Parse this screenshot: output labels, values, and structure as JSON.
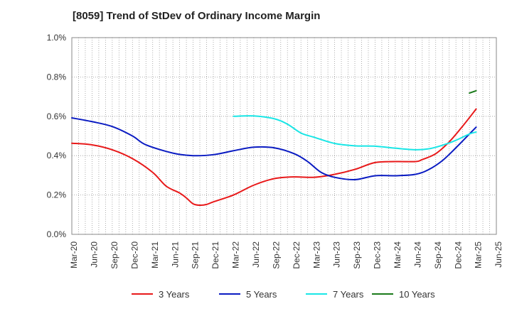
{
  "chart_data": {
    "type": "line",
    "title": "[8059]  Trend of StDev of Ordinary Income Margin",
    "xlabel": "",
    "ylabel": "",
    "x_ticks": [
      "Mar-20",
      "Jun-20",
      "Sep-20",
      "Dec-20",
      "Mar-21",
      "Jun-21",
      "Sep-21",
      "Dec-21",
      "Mar-22",
      "Jun-22",
      "Sep-22",
      "Dec-22",
      "Mar-23",
      "Jun-23",
      "Sep-23",
      "Dec-23",
      "Mar-24",
      "Jun-24",
      "Sep-24",
      "Dec-24",
      "Mar-25",
      "Jun-25"
    ],
    "y_ticks": [
      "0.0%",
      "0.2%",
      "0.4%",
      "0.6%",
      "0.8%",
      "1.0%"
    ],
    "y_tick_values": [
      0,
      0.2,
      0.4,
      0.6,
      0.8,
      1.0
    ],
    "ylim": [
      0,
      1.0
    ],
    "grid": true,
    "legend_position": "bottom",
    "series": [
      {
        "name": "3 Years",
        "color": "#e8191a",
        "points": [
          [
            "Mar-20",
            0.463
          ],
          [
            "Jun-20",
            0.455
          ],
          [
            "Sep-20",
            0.43
          ],
          [
            "Dec-20",
            0.385
          ],
          [
            "Mar-21",
            0.315
          ],
          [
            "May-21",
            0.245
          ],
          [
            "Jul-21",
            0.21
          ],
          [
            "Aug-21",
            0.185
          ],
          [
            "Sep-21",
            0.155
          ],
          [
            "Oct-21",
            0.148
          ],
          [
            "Nov-21",
            0.152
          ],
          [
            "Dec-21",
            0.165
          ],
          [
            "Mar-22",
            0.2
          ],
          [
            "Jun-22",
            0.25
          ],
          [
            "Sep-22",
            0.283
          ],
          [
            "Dec-22",
            0.292
          ],
          [
            "Mar-23",
            0.29
          ],
          [
            "Jun-23",
            0.305
          ],
          [
            "Sep-23",
            0.33
          ],
          [
            "Dec-23",
            0.365
          ],
          [
            "Mar-24",
            0.37
          ],
          [
            "Jun-24",
            0.37
          ],
          [
            "Jul-24",
            0.38
          ],
          [
            "Sep-24",
            0.41
          ],
          [
            "Nov-24",
            0.47
          ],
          [
            "Jan-25",
            0.55
          ],
          [
            "Mar-25",
            0.637
          ]
        ]
      },
      {
        "name": "5 Years",
        "color": "#0a1bc2",
        "points": [
          [
            "Mar-20",
            0.592
          ],
          [
            "Jun-20",
            0.573
          ],
          [
            "Sep-20",
            0.548
          ],
          [
            "Dec-20",
            0.5
          ],
          [
            "Feb-21",
            0.455
          ],
          [
            "Jun-21",
            0.413
          ],
          [
            "Sep-21",
            0.4
          ],
          [
            "Dec-21",
            0.405
          ],
          [
            "Mar-22",
            0.425
          ],
          [
            "Jun-22",
            0.443
          ],
          [
            "Sep-22",
            0.44
          ],
          [
            "Dec-22",
            0.41
          ],
          [
            "Feb-23",
            0.37
          ],
          [
            "Apr-23",
            0.315
          ],
          [
            "Jun-23",
            0.29
          ],
          [
            "Sep-23",
            0.278
          ],
          [
            "Dec-23",
            0.298
          ],
          [
            "Mar-24",
            0.298
          ],
          [
            "Jun-24",
            0.305
          ],
          [
            "Aug-24",
            0.33
          ],
          [
            "Oct-24",
            0.375
          ],
          [
            "Dec-24",
            0.44
          ],
          [
            "Feb-25",
            0.51
          ],
          [
            "Mar-25",
            0.545
          ]
        ]
      },
      {
        "name": "7 Years",
        "color": "#19e6e6",
        "points": [
          [
            "Mar-22",
            0.6
          ],
          [
            "Jun-22",
            0.602
          ],
          [
            "Sep-22",
            0.588
          ],
          [
            "Nov-22",
            0.56
          ],
          [
            "Jan-23",
            0.515
          ],
          [
            "Mar-23",
            0.493
          ],
          [
            "Jun-23",
            0.462
          ],
          [
            "Sep-23",
            0.45
          ],
          [
            "Dec-23",
            0.448
          ],
          [
            "Mar-24",
            0.438
          ],
          [
            "Jun-24",
            0.43
          ],
          [
            "Aug-24",
            0.435
          ],
          [
            "Oct-24",
            0.453
          ],
          [
            "Dec-24",
            0.478
          ],
          [
            "Feb-25",
            0.51
          ],
          [
            "Mar-25",
            0.52
          ]
        ]
      },
      {
        "name": "10 Years",
        "color": "#1a7a1a",
        "points": [
          [
            "Feb-25",
            0.718
          ],
          [
            "Mar-25",
            0.73
          ]
        ]
      }
    ]
  }
}
